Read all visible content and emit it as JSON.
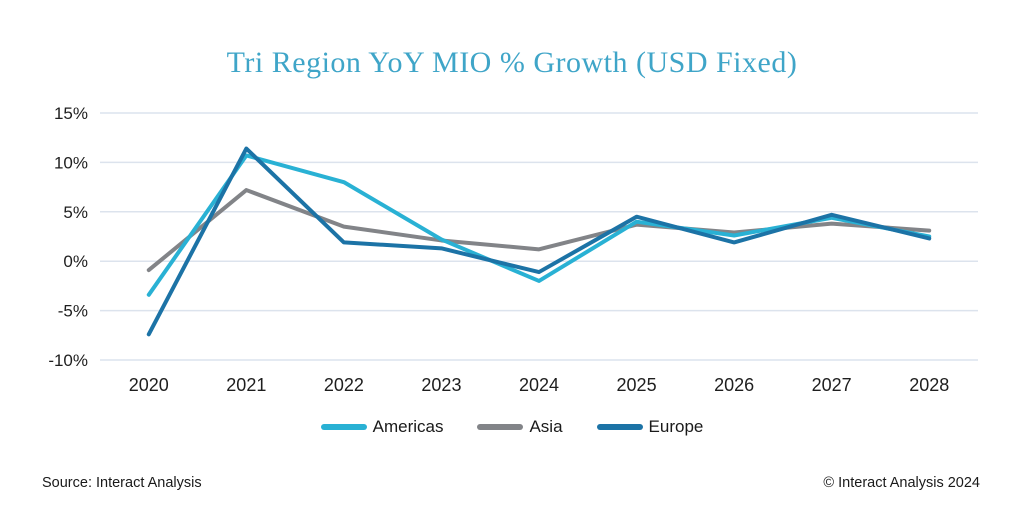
{
  "title": "Tri Region YoY MIO % Growth (USD Fixed)",
  "footer": {
    "source": "Source: Interact Analysis",
    "copyright": "© Interact Analysis 2024"
  },
  "colors": {
    "title": "#3fa5c8",
    "gridline": "#dce3ed",
    "axis_text": "#1e1e1e",
    "americas": "#29b1d4",
    "asia": "#828488",
    "europe": "#1c73a6"
  },
  "chart_data": {
    "type": "line",
    "title": "Tri Region YoY MIO % Growth (USD Fixed)",
    "categories": [
      "2020",
      "2021",
      "2022",
      "2023",
      "2024",
      "2025",
      "2026",
      "2027",
      "2028"
    ],
    "series": [
      {
        "name": "Americas",
        "color": "#29b1d4",
        "values": [
          -3.4,
          10.7,
          8.0,
          2.2,
          -2.0,
          4.0,
          2.6,
          4.4,
          2.5
        ]
      },
      {
        "name": "Asia",
        "color": "#828488",
        "values": [
          -0.9,
          7.2,
          3.5,
          2.1,
          1.2,
          3.7,
          2.9,
          3.8,
          3.1
        ]
      },
      {
        "name": "Europe",
        "color": "#1c73a6",
        "values": [
          -7.4,
          11.4,
          1.9,
          1.3,
          -1.1,
          4.5,
          1.9,
          4.7,
          2.3
        ]
      }
    ],
    "xlabel": "",
    "ylabel": "",
    "ylim": [
      -10,
      15
    ],
    "yticks": [
      15,
      10,
      5,
      0,
      -5,
      -10
    ],
    "ytick_suffix": "%",
    "grid": "horizontal",
    "legend_position": "bottom"
  }
}
